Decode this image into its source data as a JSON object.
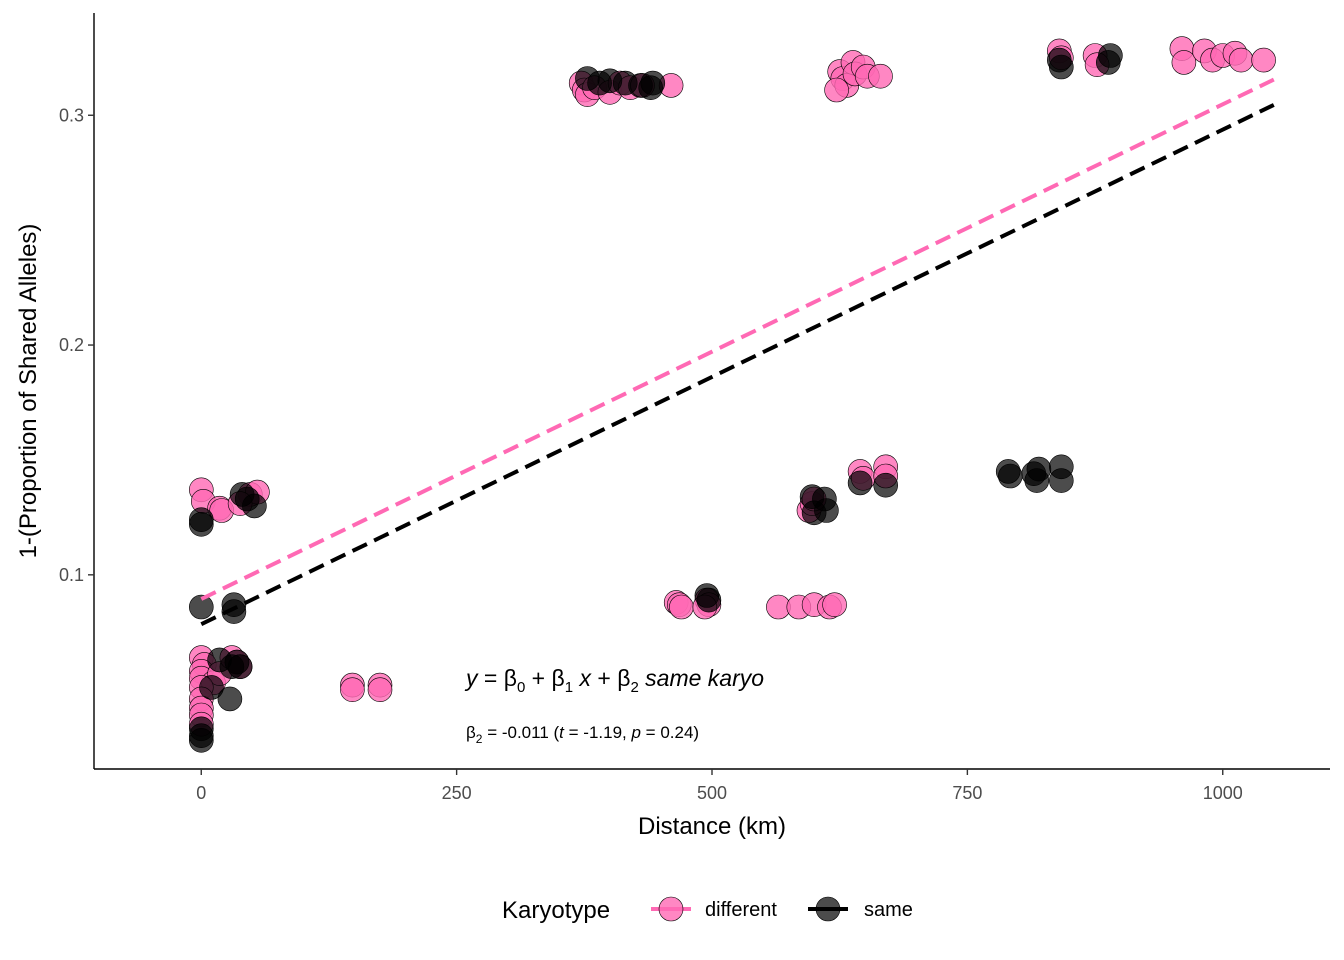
{
  "chart_data": {
    "type": "scatter",
    "title": "",
    "xlabel": "Distance (km)",
    "ylabel": "1-(Proportion of Shared Alleles)",
    "xlim": [
      -105,
      1105
    ],
    "ylim": [
      0.0155,
      0.3445
    ],
    "x_ticks": [
      0,
      250,
      500,
      750,
      1000
    ],
    "x_tick_labels": [
      "0",
      "250",
      "500",
      "750",
      "1000"
    ],
    "y_ticks": [
      0.1,
      0.2,
      0.3
    ],
    "y_tick_labels": [
      "0.1",
      "0.2",
      "0.3"
    ],
    "grid": false,
    "legend": {
      "title": "Karyotype",
      "position": "bottom",
      "entries": [
        {
          "label": "different",
          "color": "#ff69b4"
        },
        {
          "label": "same",
          "color": "#000000"
        }
      ]
    },
    "series": [
      {
        "name": "different",
        "color": "#ff69b4",
        "points": [
          [
            0,
            0.137
          ],
          [
            2,
            0.132
          ],
          [
            18,
            0.129
          ],
          [
            20,
            0.128
          ],
          [
            48,
            0.135
          ],
          [
            55,
            0.136
          ],
          [
            38,
            0.131
          ],
          [
            0,
            0.064
          ],
          [
            3,
            0.061
          ],
          [
            0,
            0.058
          ],
          [
            0,
            0.055
          ],
          [
            12,
            0.053
          ],
          [
            18,
            0.057
          ],
          [
            0,
            0.051
          ],
          [
            0,
            0.046
          ],
          [
            0,
            0.042
          ],
          [
            0,
            0.039
          ],
          [
            0,
            0.035
          ],
          [
            30,
            0.064
          ],
          [
            35,
            0.062
          ],
          [
            38,
            0.06
          ],
          [
            148,
            0.052
          ],
          [
            148,
            0.05
          ],
          [
            175,
            0.052
          ],
          [
            175,
            0.05
          ],
          [
            372,
            0.314
          ],
          [
            375,
            0.311
          ],
          [
            378,
            0.309
          ],
          [
            385,
            0.312
          ],
          [
            400,
            0.31
          ],
          [
            410,
            0.314
          ],
          [
            420,
            0.312
          ],
          [
            432,
            0.313
          ],
          [
            460,
            0.313
          ],
          [
            465,
            0.088
          ],
          [
            468,
            0.087
          ],
          [
            470,
            0.086
          ],
          [
            495,
            0.089
          ],
          [
            497,
            0.087
          ],
          [
            493,
            0.086
          ],
          [
            565,
            0.086
          ],
          [
            585,
            0.086
          ],
          [
            600,
            0.087
          ],
          [
            615,
            0.086
          ],
          [
            620,
            0.087
          ],
          [
            595,
            0.128
          ],
          [
            598,
            0.131
          ],
          [
            600,
            0.133
          ],
          [
            625,
            0.319
          ],
          [
            628,
            0.316
          ],
          [
            632,
            0.313
          ],
          [
            638,
            0.323
          ],
          [
            640,
            0.318
          ],
          [
            648,
            0.321
          ],
          [
            652,
            0.317
          ],
          [
            665,
            0.317
          ],
          [
            622,
            0.311
          ],
          [
            645,
            0.145
          ],
          [
            648,
            0.142
          ],
          [
            670,
            0.147
          ],
          [
            670,
            0.143
          ],
          [
            840,
            0.328
          ],
          [
            842,
            0.325
          ],
          [
            875,
            0.326
          ],
          [
            877,
            0.322
          ],
          [
            960,
            0.329
          ],
          [
            962,
            0.323
          ],
          [
            982,
            0.328
          ],
          [
            990,
            0.324
          ],
          [
            1000,
            0.326
          ],
          [
            1012,
            0.327
          ],
          [
            1018,
            0.324
          ],
          [
            1040,
            0.324
          ]
        ]
      },
      {
        "name": "same",
        "color": "#000000",
        "points": [
          [
            0,
            0.124
          ],
          [
            0,
            0.122
          ],
          [
            40,
            0.135
          ],
          [
            45,
            0.133
          ],
          [
            52,
            0.13
          ],
          [
            0,
            0.086
          ],
          [
            32,
            0.087
          ],
          [
            32,
            0.084
          ],
          [
            0,
            0.033
          ],
          [
            0,
            0.03
          ],
          [
            0,
            0.028
          ],
          [
            10,
            0.051
          ],
          [
            18,
            0.063
          ],
          [
            28,
            0.046
          ],
          [
            30,
            0.06
          ],
          [
            35,
            0.062
          ],
          [
            38,
            0.06
          ],
          [
            378,
            0.316
          ],
          [
            390,
            0.314
          ],
          [
            400,
            0.315
          ],
          [
            415,
            0.314
          ],
          [
            430,
            0.313
          ],
          [
            440,
            0.312
          ],
          [
            442,
            0.314
          ],
          [
            495,
            0.091
          ],
          [
            497,
            0.089
          ],
          [
            598,
            0.134
          ],
          [
            600,
            0.127
          ],
          [
            610,
            0.133
          ],
          [
            612,
            0.128
          ],
          [
            645,
            0.14
          ],
          [
            670,
            0.139
          ],
          [
            790,
            0.145
          ],
          [
            792,
            0.143
          ],
          [
            815,
            0.144
          ],
          [
            818,
            0.141
          ],
          [
            820,
            0.146
          ],
          [
            842,
            0.147
          ],
          [
            842,
            0.141
          ],
          [
            840,
            0.324
          ],
          [
            842,
            0.321
          ],
          [
            890,
            0.326
          ],
          [
            888,
            0.323
          ]
        ]
      }
    ],
    "fit_lines": [
      {
        "name": "different",
        "color": "#ff69b4",
        "x": [
          0,
          1050
        ],
        "y": [
          0.0895,
          0.3155
        ],
        "style": "dashed"
      },
      {
        "name": "same",
        "color": "#000000",
        "x": [
          0,
          1050
        ],
        "y": [
          0.0785,
          0.3045
        ],
        "style": "dashed"
      }
    ],
    "annotations": {
      "equation": "y = β0 + β1 x  + β2 same karyo",
      "stat": "β2 = -0.011 (t = -1.19, p = 0.24)"
    }
  }
}
